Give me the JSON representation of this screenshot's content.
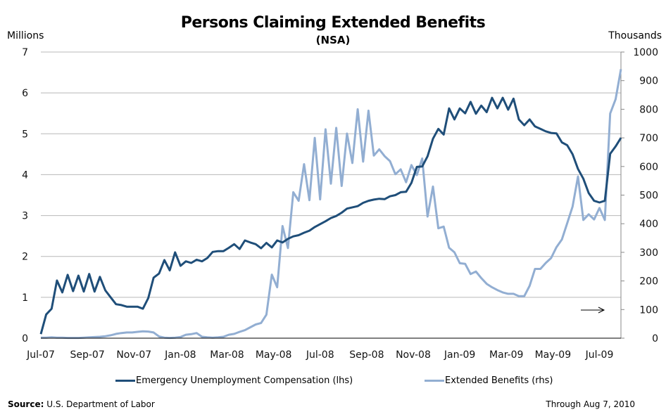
{
  "chart_data": {
    "type": "line",
    "title": "Persons Claiming Extended Benefits",
    "subtitle": "(NSA)",
    "ylabel_left": "Millions",
    "ylabel_right": "Thousands",
    "ylim_left": [
      0,
      7
    ],
    "ylim_right": [
      0,
      1000
    ],
    "yticks_left": [
      "0",
      "1",
      "2",
      "3",
      "4",
      "5",
      "6",
      "7"
    ],
    "yticks_right": [
      "0",
      "100",
      "200",
      "300",
      "400",
      "500",
      "600",
      "700",
      "800",
      "900",
      "1000"
    ],
    "xtick_labels": [
      "Jul-07",
      "Sep-07",
      "Nov-07",
      "Jan-08",
      "Mar-08",
      "May-08",
      "Jul-08",
      "Sep-08",
      "Nov-08",
      "Jan-09",
      "Mar-09",
      "May-09",
      "Jul-09"
    ],
    "x_frequency": "weekly",
    "grid": true,
    "legend_position": "bottom",
    "series": [
      {
        "name": "Emergency Unemployment Compensation (lhs)",
        "axis": "left",
        "color": "#1f4e79",
        "values": [
          0.1,
          0.58,
          0.72,
          1.41,
          1.12,
          1.55,
          1.15,
          1.53,
          1.14,
          1.57,
          1.14,
          1.5,
          1.17,
          1.0,
          0.83,
          0.81,
          0.77,
          0.77,
          0.77,
          0.72,
          0.98,
          1.48,
          1.58,
          1.91,
          1.66,
          2.1,
          1.77,
          1.88,
          1.84,
          1.92,
          1.88,
          1.96,
          2.11,
          2.13,
          2.13,
          2.21,
          2.3,
          2.18,
          2.39,
          2.34,
          2.3,
          2.2,
          2.33,
          2.22,
          2.39,
          2.34,
          2.43,
          2.49,
          2.52,
          2.58,
          2.63,
          2.72,
          2.79,
          2.86,
          2.94,
          2.99,
          3.07,
          3.17,
          3.2,
          3.23,
          3.31,
          3.36,
          3.39,
          3.41,
          3.4,
          3.47,
          3.5,
          3.57,
          3.58,
          3.8,
          4.19,
          4.2,
          4.45,
          4.88,
          5.12,
          4.98,
          5.62,
          5.35,
          5.62,
          5.5,
          5.78,
          5.49,
          5.69,
          5.53,
          5.88,
          5.62,
          5.88,
          5.59,
          5.86,
          5.35,
          5.21,
          5.35,
          5.18,
          5.12,
          5.06,
          5.02,
          5.01,
          4.79,
          4.72,
          4.5,
          4.14,
          3.9,
          3.55,
          3.36,
          3.32,
          3.36,
          4.51,
          4.69,
          4.9
        ]
      },
      {
        "name": "Extended Benefits (rhs)",
        "axis": "right",
        "color": "#92aed2",
        "values": [
          2,
          2,
          3,
          2,
          2,
          1,
          1,
          1,
          2,
          3,
          4,
          5,
          7,
          10,
          15,
          18,
          20,
          20,
          22,
          24,
          23,
          20,
          6,
          2,
          1,
          2,
          4,
          12,
          14,
          18,
          5,
          3,
          2,
          3,
          5,
          12,
          15,
          22,
          28,
          38,
          48,
          53,
          82,
          222,
          178,
          392,
          315,
          510,
          480,
          608,
          482,
          700,
          485,
          730,
          540,
          735,
          532,
          715,
          612,
          800,
          617,
          795,
          638,
          660,
          636,
          619,
          573,
          590,
          545,
          605,
          570,
          628,
          425,
          530,
          384,
          390,
          316,
          300,
          262,
          260,
          224,
          233,
          210,
          190,
          178,
          168,
          160,
          155,
          155,
          147,
          147,
          183,
          242,
          242,
          263,
          280,
          318,
          345,
          402,
          460,
          565,
          413,
          433,
          415,
          455,
          413,
          785,
          835,
          940
        ]
      }
    ],
    "annotations": [
      "arrow-right"
    ]
  },
  "legend": {
    "euc_label": "Emergency Unemployment Compensation (lhs)",
    "eb_label": "Extended Benefits (rhs)"
  },
  "footer": {
    "source_label": "Source:",
    "source_text": "U.S. Department  of Labor",
    "through": "Through Aug 7, 2010"
  }
}
